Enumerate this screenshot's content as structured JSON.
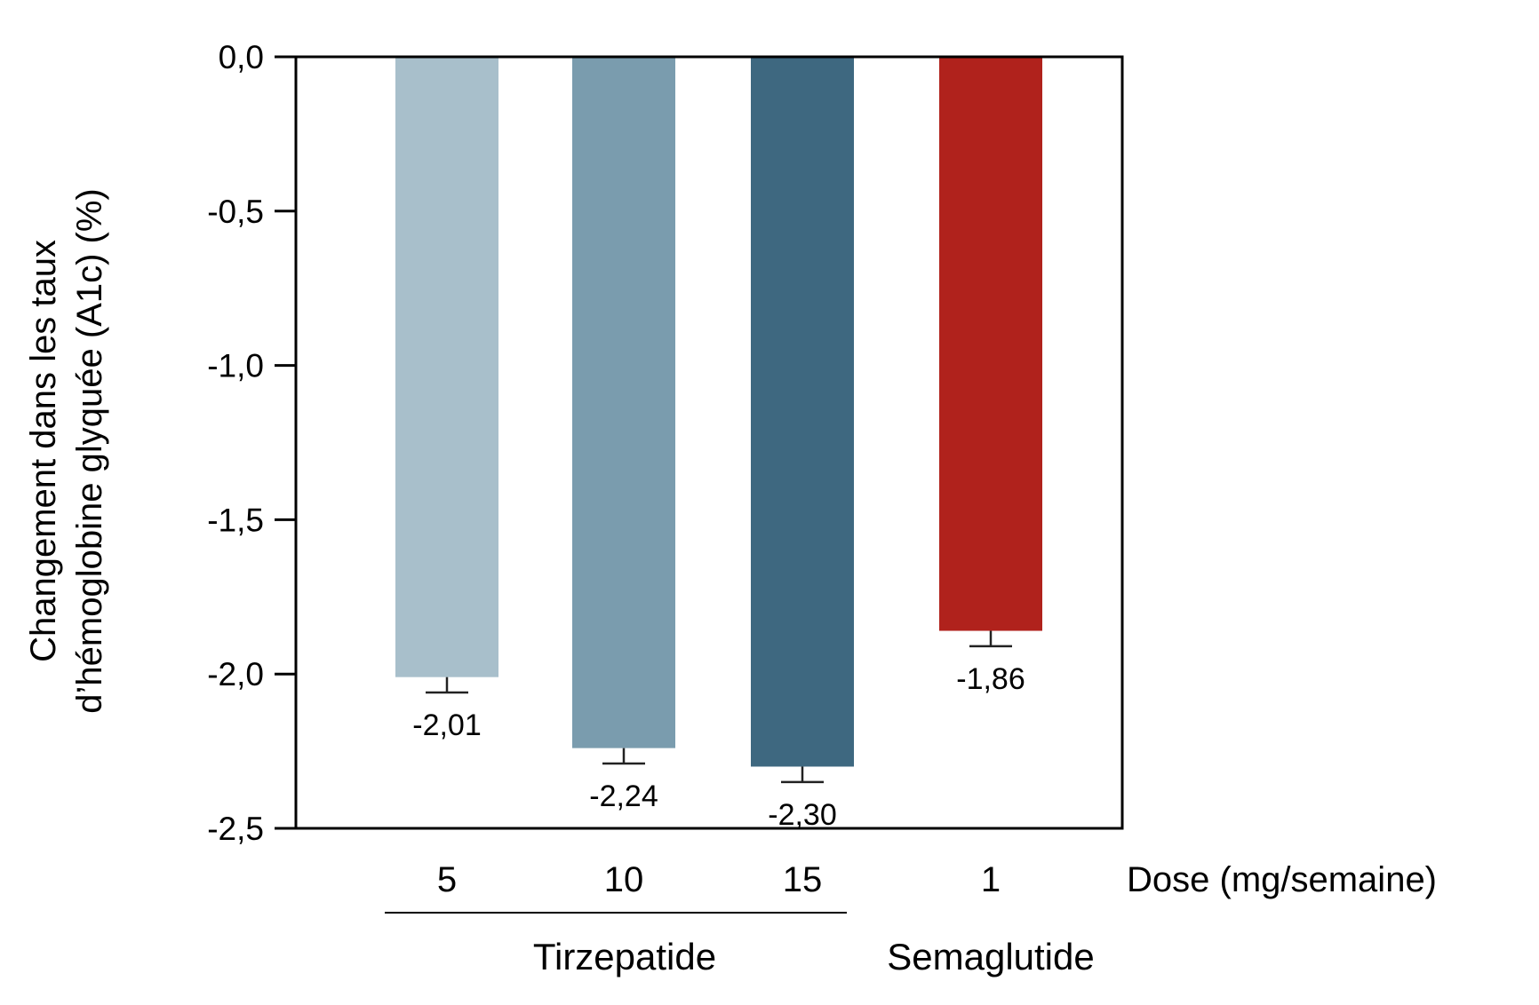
{
  "chart_data": {
    "type": "bar",
    "title": "",
    "ylabel_lines": [
      "Changement dans les taux",
      "d’hémoglobine glyquée (A1c) (%)"
    ],
    "xlabel": "Dose (mg/semaine)",
    "ylim": [
      -2.5,
      0.0
    ],
    "yticks": [
      0.0,
      -0.5,
      -1.0,
      -1.5,
      -2.0,
      -2.5
    ],
    "ytick_labels": [
      "0,0",
      "-0,5",
      "-1,0",
      "-1,5",
      "-2,0",
      "-2,5"
    ],
    "grid": false,
    "categories": [
      "5",
      "10",
      "15",
      "1"
    ],
    "values": [
      -2.01,
      -2.24,
      -2.3,
      -1.86
    ],
    "error": [
      0.05,
      0.05,
      0.05,
      0.05
    ],
    "value_labels": [
      "-2,01",
      "-2,24",
      "-2,30",
      "-1,86"
    ],
    "colors": [
      "#a8bfcb",
      "#7a9cae",
      "#3e6880",
      "#b0221c"
    ],
    "groups": [
      {
        "name": "Tirzepatide",
        "category_indices": [
          0,
          1,
          2
        ]
      },
      {
        "name": "Semaglutide",
        "category_indices": [
          3
        ]
      }
    ]
  }
}
